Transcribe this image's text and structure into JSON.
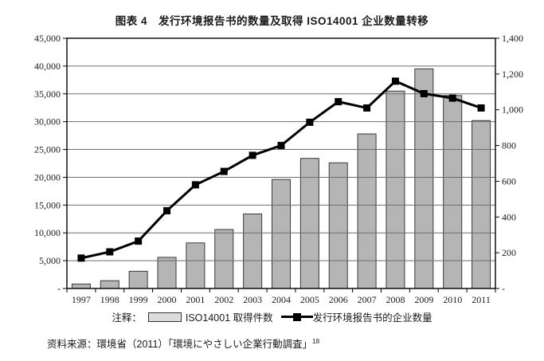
{
  "title": "图表 4　发行环境报告书的数量及取得 ISO14001 企业数量转移",
  "chart_data": {
    "type": "bar",
    "title": "图表 4　发行环境报告书的数量及取得 ISO14001 企业数量转移",
    "categories": [
      "1997",
      "1998",
      "1999",
      "2000",
      "2001",
      "2002",
      "2003",
      "2004",
      "2005",
      "2006",
      "2007",
      "2008",
      "2009",
      "2010",
      "2011"
    ],
    "series": [
      {
        "name": "ISO14001 取得件数",
        "type": "bar",
        "axis": "left",
        "color": "#b5b5b5",
        "values": [
          800,
          1400,
          3100,
          5600,
          8200,
          10600,
          13400,
          19600,
          23400,
          22600,
          27800,
          35500,
          39500,
          34700,
          30200
        ]
      },
      {
        "name": "发行环境报告书的企业数量",
        "type": "line",
        "axis": "right",
        "color": "#000000",
        "values": [
          170,
          205,
          265,
          435,
          580,
          655,
          745,
          800,
          930,
          1045,
          1010,
          1160,
          1090,
          1065,
          1010
        ]
      }
    ],
    "left_axis": {
      "min": 0,
      "max": 45000,
      "step": 5000,
      "tick_labels": [
        "-",
        "5,000",
        "10,000",
        "15,000",
        "20,000",
        "25,000",
        "30,000",
        "35,000",
        "40,000",
        "45,000"
      ]
    },
    "right_axis": {
      "min": 0,
      "max": 1400,
      "step": 200,
      "tick_labels": [
        "-",
        "200",
        "400",
        "600",
        "800",
        "1,000",
        "1,200",
        "1,400"
      ]
    },
    "grid": true,
    "legend_position": "bottom"
  },
  "legend": {
    "prefix": "注释：",
    "bar_label": "ISO14001 取得件数",
    "line_label": "发行环境报告书的企业数量"
  },
  "source": {
    "prefix": "资料来源：",
    "text": "環境省（2011）「環境にやさしい企業行動調査」",
    "superscript": "18"
  }
}
